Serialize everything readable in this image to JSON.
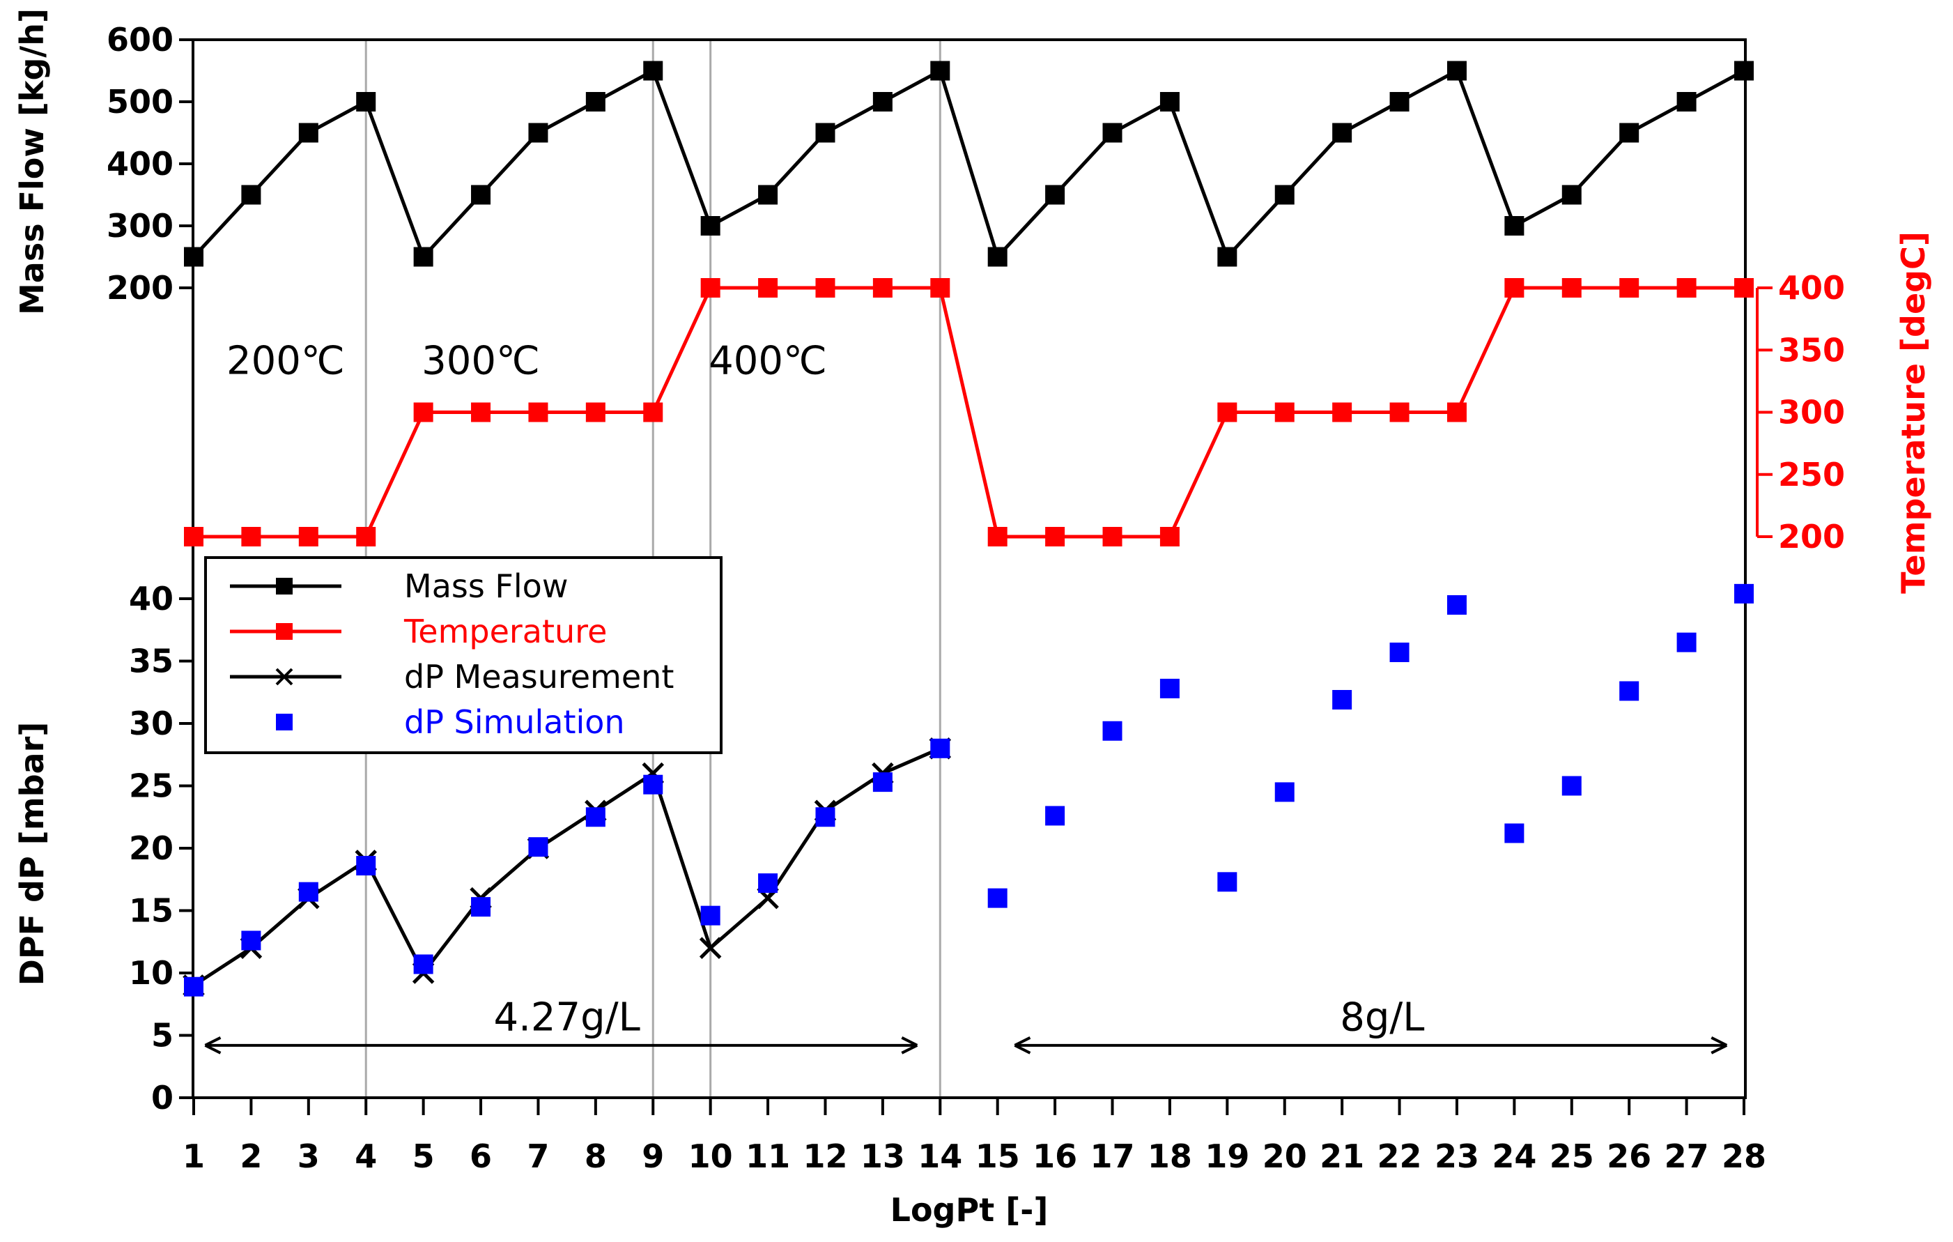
{
  "chart_data": {
    "type": "line",
    "x": [
      1,
      2,
      3,
      4,
      5,
      6,
      7,
      8,
      9,
      10,
      11,
      12,
      13,
      14,
      15,
      16,
      17,
      18,
      19,
      20,
      21,
      22,
      23,
      24,
      25,
      26,
      27,
      28
    ],
    "xlabel": "LogPt [-]",
    "xlim": [
      1,
      28
    ],
    "colors": {
      "mass_flow": "#000000",
      "temperature": "#ff0000",
      "dp_measurement": "#000000",
      "dp_simulation": "#0000ff",
      "gridline": "#aaaaaa"
    },
    "upper_left_axis": {
      "label": "Mass Flow [kg/h]",
      "ylim": [
        200,
        600
      ],
      "ticks": [
        200,
        300,
        400,
        500,
        600
      ]
    },
    "temperature_axis": {
      "label": "Temperature [degC]",
      "ylim": [
        200,
        400
      ],
      "ticks": [
        200,
        250,
        300,
        350,
        400
      ]
    },
    "lower_axis": {
      "label": "DPF dP [mbar]",
      "ylim": [
        0,
        40
      ],
      "ticks": [
        0,
        5,
        10,
        15,
        20,
        25,
        30,
        35,
        40
      ]
    },
    "series": [
      {
        "name": "Mass Flow",
        "axis": "mass_flow",
        "marker": "square",
        "x": [
          1,
          2,
          3,
          4,
          5,
          6,
          7,
          8,
          9,
          10,
          11,
          12,
          13,
          14,
          15,
          16,
          17,
          18,
          19,
          20,
          21,
          22,
          23,
          24,
          25,
          26,
          27,
          28
        ],
        "values": [
          250,
          350,
          450,
          500,
          250,
          350,
          450,
          500,
          550,
          300,
          350,
          450,
          500,
          550,
          250,
          350,
          450,
          500,
          250,
          350,
          450,
          500,
          550,
          300,
          350,
          450,
          500,
          550
        ]
      },
      {
        "name": "Temperature",
        "axis": "temperature",
        "marker": "square",
        "x": [
          1,
          2,
          3,
          4,
          5,
          6,
          7,
          8,
          9,
          10,
          11,
          12,
          13,
          14,
          15,
          16,
          17,
          18,
          19,
          20,
          21,
          22,
          23,
          24,
          25,
          26,
          27,
          28
        ],
        "values": [
          200,
          200,
          200,
          200,
          300,
          300,
          300,
          300,
          300,
          400,
          400,
          400,
          400,
          400,
          200,
          200,
          200,
          200,
          300,
          300,
          300,
          300,
          300,
          400,
          400,
          400,
          400,
          400
        ]
      },
      {
        "name": "dP Measurement",
        "axis": "dp",
        "marker": "x",
        "x": [
          1,
          2,
          3,
          4,
          5,
          6,
          7,
          8,
          9,
          10,
          11,
          12,
          13,
          14
        ],
        "values": [
          9,
          12,
          16,
          19,
          10,
          16,
          20,
          23,
          26,
          12,
          16,
          23,
          26,
          28
        ]
      },
      {
        "name": "dP Simulation",
        "axis": "dp",
        "marker": "square",
        "line": false,
        "x": [
          1,
          2,
          3,
          4,
          5,
          6,
          7,
          8,
          9,
          10,
          11,
          12,
          13,
          14,
          15,
          16,
          17,
          18,
          19,
          20,
          21,
          22,
          23,
          24,
          25,
          26,
          27,
          28
        ],
        "values": [
          8.9,
          12.6,
          16.5,
          18.6,
          10.7,
          15.3,
          20.1,
          22.5,
          25.1,
          14.6,
          17.2,
          22.5,
          25.3,
          28.0,
          16.0,
          22.6,
          29.4,
          32.8,
          17.3,
          24.5,
          31.9,
          35.7,
          39.5,
          21.2,
          25.0,
          32.6,
          36.5,
          40.4
        ]
      }
    ],
    "vertical_lines_at_x": [
      4,
      9,
      10,
      14
    ],
    "annotations": [
      {
        "name": "temp-200",
        "text": "200℃",
        "x": 2.6,
        "y_temp": 342
      },
      {
        "name": "temp-300",
        "text": "300℃",
        "x": 6.0,
        "y_temp": 342
      },
      {
        "name": "temp-400",
        "text": "400℃",
        "x": 11.0,
        "y_temp": 342
      }
    ],
    "ranges": [
      {
        "name": "loading-4-27",
        "text": "4.27g/L",
        "x_from": 1.2,
        "x_to": 13.6,
        "text_x": 7.5,
        "y_dp": 4.2,
        "text_y_dp": 6.5
      },
      {
        "name": "loading-8",
        "text": "8g/L",
        "x_from": 15.3,
        "x_to": 27.7,
        "text_x": 21.7,
        "y_dp": 4.2,
        "text_y_dp": 6.5
      }
    ],
    "legend": {
      "placement": "left",
      "entries": [
        "Mass Flow",
        "Temperature",
        "dP Measurement",
        "dP Simulation"
      ]
    }
  }
}
